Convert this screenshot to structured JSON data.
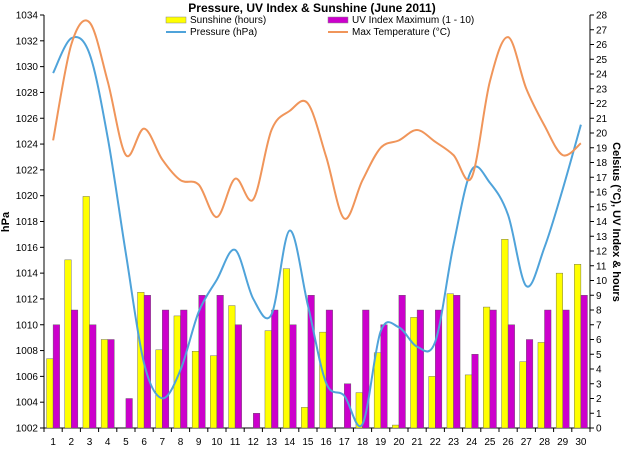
{
  "chart_data": {
    "type": "bar",
    "title": "Pressure, UV Index & Sunshine (June 2011)",
    "categories": [
      "1",
      "2",
      "3",
      "4",
      "5",
      "6",
      "7",
      "8",
      "9",
      "10",
      "11",
      "12",
      "13",
      "14",
      "15",
      "16",
      "17",
      "18",
      "19",
      "20",
      "21",
      "22",
      "23",
      "24",
      "25",
      "26",
      "27",
      "28",
      "29",
      "30"
    ],
    "ylabel_left": "hPa",
    "ylabel_right": "Celsius (°C), UV Index & hours",
    "ylim_left": [
      1002,
      1034
    ],
    "ylim_right": [
      0,
      28
    ],
    "yticks_left": [
      "1002",
      "1004",
      "1006",
      "1008",
      "1010",
      "1012",
      "1014",
      "1016",
      "1018",
      "1020",
      "1022",
      "1024",
      "1026",
      "1028",
      "1030",
      "1032",
      "1034"
    ],
    "yticks_right": [
      "0",
      "1",
      "2",
      "3",
      "4",
      "5",
      "6",
      "7",
      "8",
      "9",
      "10",
      "11",
      "12",
      "13",
      "14",
      "15",
      "16",
      "17",
      "18",
      "19",
      "20",
      "21",
      "22",
      "23",
      "24",
      "25",
      "26",
      "27",
      "28"
    ],
    "grid": false,
    "legend_position": "top",
    "series": [
      {
        "name": "Sunshine (hours)",
        "type": "bar",
        "axis": "right",
        "color": "#FFFF00",
        "values": [
          4.7,
          11.4,
          15.7,
          6.0,
          0,
          9.2,
          5.3,
          7.6,
          5.2,
          4.9,
          8.3,
          0,
          6.6,
          10.8,
          1.4,
          6.5,
          0,
          2.4,
          5.1,
          0.2,
          7.5,
          3.5,
          9.1,
          3.6,
          8.2,
          12.8,
          4.5,
          5.8,
          10.5,
          11.1
        ]
      },
      {
        "name": "UV Index Maximum (1 - 10)",
        "type": "bar",
        "axis": "right",
        "color": "#CC00CC",
        "values": [
          7,
          8,
          7,
          6,
          2,
          9,
          8,
          8,
          9,
          9,
          7,
          1,
          8,
          7,
          9,
          8,
          3,
          8,
          7,
          9,
          8,
          8,
          9,
          5,
          8,
          7,
          6,
          8,
          8,
          9
        ]
      },
      {
        "name": "Pressure (hPa)",
        "type": "line",
        "axis": "left",
        "color": "#4FA3DA",
        "values": [
          1029.5,
          1032.2,
          1031.0,
          1024.5,
          1015.5,
          1007.0,
          1004.3,
          1006.5,
          1011.0,
          1013.5,
          1015.8,
          1012.0,
          1010.8,
          1017.3,
          1011.5,
          1005.5,
          1004.5,
          1002.3,
          1009.5,
          1009.8,
          1008.3,
          1008.7,
          1016.2,
          1022.0,
          1021.0,
          1018.5,
          1013.0,
          1016.0,
          1020.5,
          1025.5
        ]
      },
      {
        "name": "Max Temperature (°C)",
        "type": "line",
        "axis": "right",
        "color": "#F0955A",
        "values": [
          19.5,
          26.0,
          27.5,
          23.5,
          18.5,
          20.3,
          18.2,
          16.8,
          16.5,
          14.3,
          16.9,
          15.5,
          20.2,
          21.5,
          22.0,
          18.4,
          14.2,
          16.8,
          19.0,
          19.5,
          20.2,
          19.4,
          18.5,
          17.0,
          23.5,
          26.5,
          23.0,
          20.5,
          18.5,
          19.3
        ]
      }
    ]
  }
}
